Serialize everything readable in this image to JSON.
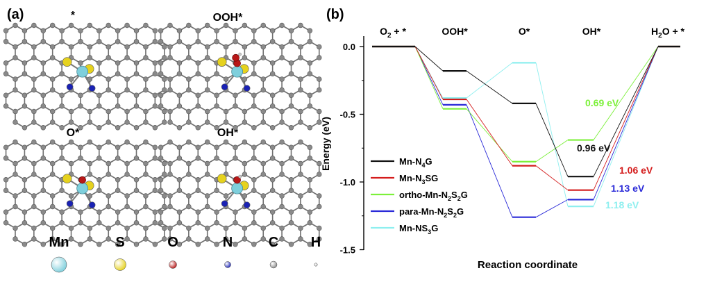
{
  "panel_a": {
    "label": "(a)",
    "structures": [
      {
        "title": "*",
        "adsorbate": null
      },
      {
        "title": "OOH*",
        "adsorbate": "OOH"
      },
      {
        "title": "O*",
        "adsorbate": "O"
      },
      {
        "title": "OH*",
        "adsorbate": "OH"
      }
    ],
    "atom_legend": [
      {
        "symbol": "Mn",
        "color": "#7ecfdc"
      },
      {
        "symbol": "S",
        "color": "#e6d21e"
      },
      {
        "symbol": "O",
        "color": "#b81818"
      },
      {
        "symbol": "N",
        "color": "#1a22b4"
      },
      {
        "symbol": "C",
        "color": "#8a8a8a"
      },
      {
        "symbol": "H",
        "color": "#c8c8c8"
      }
    ]
  },
  "panel_b": {
    "label": "(b)",
    "step_labels": [
      {
        "main": "O",
        "sub": "2",
        "rest": " + *"
      },
      {
        "main": "OOH*",
        "sub": "",
        "rest": ""
      },
      {
        "main": "O*",
        "sub": "",
        "rest": ""
      },
      {
        "main": "OH*",
        "sub": "",
        "rest": ""
      },
      {
        "main": "H",
        "sub": "2",
        "rest": "O + *"
      }
    ]
  },
  "chart_data": {
    "type": "line",
    "xlabel": "Reaction coordinate",
    "ylabel": "Energy (eV)",
    "ylim": [
      -1.5,
      0.05
    ],
    "yticks": [
      0.0,
      -0.5,
      -1.0,
      -1.5
    ],
    "ytick_labels": [
      "0.0",
      "-0.5",
      "-1.0",
      "-1.5"
    ],
    "categories": [
      "O2 + *",
      "OOH*",
      "O*",
      "OH*",
      "H2O + *"
    ],
    "legend_position": "lower-left",
    "series": [
      {
        "name": "Mn-N4G",
        "legend": {
          "a": "Mn-N",
          "s": "4",
          "b": "G",
          "t": "",
          "u": ""
        },
        "color": "#111111",
        "values": [
          0.0,
          -0.18,
          -0.42,
          -0.96,
          0.0
        ]
      },
      {
        "name": "Mn-N3SG",
        "legend": {
          "a": "Mn-N",
          "s": "3",
          "b": "SG",
          "t": "",
          "u": ""
        },
        "color": "#d41c1c",
        "values": [
          0.0,
          -0.39,
          -0.88,
          -1.06,
          0.0
        ]
      },
      {
        "name": "ortho-Mn-N2S2G",
        "legend": {
          "a": "ortho-Mn-N",
          "s": "2",
          "b": "S",
          "t": "2",
          "u": "G"
        },
        "color": "#7cf03a",
        "values": [
          0.0,
          -0.46,
          -0.85,
          -0.69,
          0.0
        ]
      },
      {
        "name": "para-Mn-N2S2G",
        "legend": {
          "a": "para-Mn-N",
          "s": "2",
          "b": "S",
          "t": "2",
          "u": "G"
        },
        "color": "#2a2ad8",
        "values": [
          0.0,
          -0.43,
          -1.26,
          -1.13,
          0.0
        ]
      },
      {
        "name": "Mn-NS3G",
        "legend": {
          "a": "Mn-NS",
          "s": "3",
          "b": "G",
          "t": "",
          "u": ""
        },
        "color": "#8eefef",
        "values": [
          0.0,
          -0.38,
          -0.12,
          -1.18,
          0.0
        ]
      }
    ],
    "annotations": [
      {
        "text": "0.69 eV",
        "color": "#7cf03a"
      },
      {
        "text": "0.96 eV",
        "color": "#111111"
      },
      {
        "text": "1.06 eV",
        "color": "#d41c1c"
      },
      {
        "text": "1.13 eV",
        "color": "#2a2ad8"
      },
      {
        "text": "1.18 eV",
        "color": "#8eefef"
      }
    ]
  }
}
